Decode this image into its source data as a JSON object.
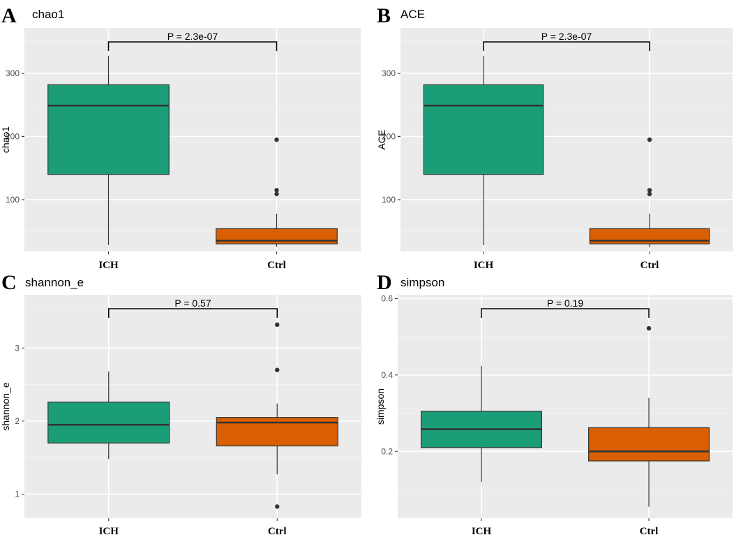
{
  "chart_data": [
    {
      "type": "box",
      "panel": "A",
      "title": "chao1",
      "ylabel": "chao1",
      "ylim": [
        18,
        372
      ],
      "yticks": [
        100,
        200,
        300
      ],
      "categories": [
        "ICH",
        "Ctrl"
      ],
      "boxes": [
        {
          "group": "ICH",
          "color": "#1b9e77",
          "min": 28,
          "q1": 140,
          "median": 249,
          "q3": 282,
          "max": 328,
          "outliers": []
        },
        {
          "group": "Ctrl",
          "color": "#d95f02",
          "min": 25,
          "q1": 30,
          "median": 35,
          "q3": 54,
          "max": 78,
          "outliers": [
            195,
            115,
            109
          ]
        }
      ],
      "pvalue_label": "P = 2.3e-07"
    },
    {
      "type": "box",
      "panel": "B",
      "title": "ACE",
      "ylabel": "ACE",
      "ylim": [
        18,
        372
      ],
      "yticks": [
        100,
        200,
        300
      ],
      "categories": [
        "ICH",
        "Ctrl"
      ],
      "boxes": [
        {
          "group": "ICH",
          "color": "#1b9e77",
          "min": 28,
          "q1": 140,
          "median": 249,
          "q3": 282,
          "max": 328,
          "outliers": []
        },
        {
          "group": "Ctrl",
          "color": "#d95f02",
          "min": 25,
          "q1": 30,
          "median": 35,
          "q3": 54,
          "max": 78,
          "outliers": [
            195,
            115,
            109
          ]
        }
      ],
      "pvalue_label": "P = 2.3e-07"
    },
    {
      "type": "box",
      "panel": "C",
      "title": "shannon_e",
      "ylabel": "shannon_e",
      "ylim": [
        0.67,
        3.73
      ],
      "yticks": [
        1,
        2,
        3
      ],
      "categories": [
        "ICH",
        "Ctrl"
      ],
      "boxes": [
        {
          "group": "ICH",
          "color": "#1b9e77",
          "min": 1.48,
          "q1": 1.7,
          "median": 1.95,
          "q3": 2.26,
          "max": 2.68,
          "outliers": []
        },
        {
          "group": "Ctrl",
          "color": "#d95f02",
          "min": 1.27,
          "q1": 1.66,
          "median": 1.98,
          "q3": 2.05,
          "max": 2.24,
          "outliers": [
            3.32,
            2.7,
            0.83
          ]
        }
      ],
      "pvalue_label": "P = 0.57"
    },
    {
      "type": "box",
      "panel": "D",
      "title": "simpson",
      "ylabel": "simpson",
      "ylim": [
        0.025,
        0.61
      ],
      "yticks": [
        0.2,
        0.4,
        0.6
      ],
      "categories": [
        "ICH",
        "Ctrl"
      ],
      "boxes": [
        {
          "group": "ICH",
          "color": "#1b9e77",
          "min": 0.12,
          "q1": 0.21,
          "median": 0.258,
          "q3": 0.305,
          "max": 0.424,
          "outliers": []
        },
        {
          "group": "Ctrl",
          "color": "#d95f02",
          "min": 0.055,
          "q1": 0.175,
          "median": 0.2,
          "q3": 0.262,
          "max": 0.34,
          "outliers": [
            0.522
          ]
        }
      ],
      "pvalue_label": "P = 0.19"
    }
  ]
}
